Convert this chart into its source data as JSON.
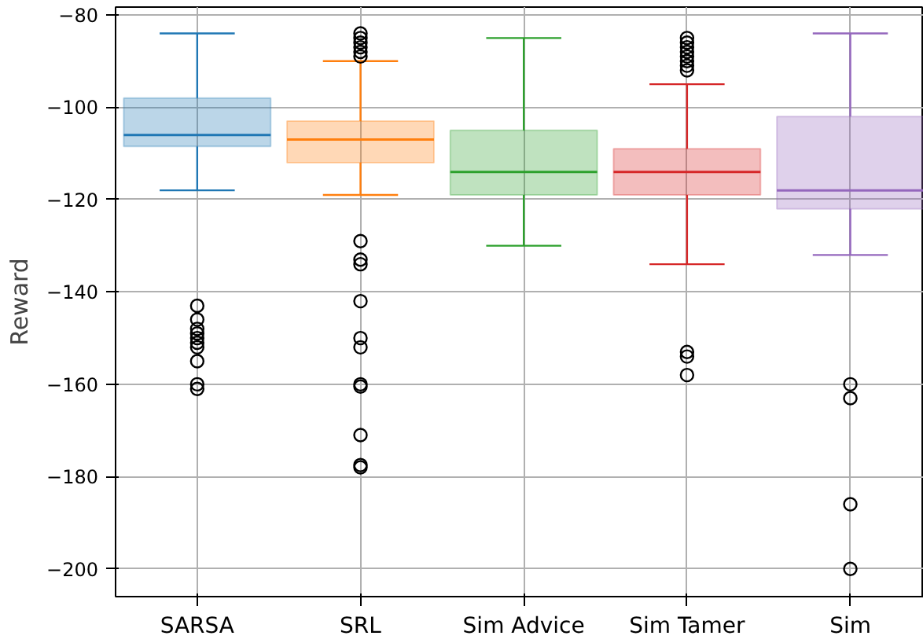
{
  "chart_data": {
    "type": "box",
    "ylabel": "Reward",
    "categories": [
      "SARSA",
      "SRL",
      "Sim Advice",
      "Sim Tamer",
      "Sim"
    ],
    "colors": [
      "#1f77b4",
      "#ff7f0e",
      "#2ca02c",
      "#d62728",
      "#9467bd"
    ],
    "boxes": [
      {
        "low": -118,
        "q1": -108.5,
        "median": -106,
        "q3": -98,
        "high": -84,
        "outliers": [
          -143,
          -146,
          -148,
          -149,
          -150,
          -151,
          -152,
          -155,
          -160,
          -161
        ]
      },
      {
        "low": -119,
        "q1": -112,
        "median": -107,
        "q3": -103,
        "high": -90,
        "outliers": [
          -84,
          -85,
          -86,
          -87,
          -88,
          -89,
          -129,
          -133,
          -134,
          -142,
          -150,
          -152,
          -160,
          -160.5,
          -171,
          -177.5,
          -178
        ]
      },
      {
        "low": -130,
        "q1": -119,
        "median": -114,
        "q3": -105,
        "high": -85
      },
      {
        "low": -134,
        "q1": -119,
        "median": -114,
        "q3": -109,
        "high": -95,
        "outliers": [
          -85,
          -86,
          -87,
          -88,
          -89,
          -90,
          -91,
          -92,
          -153,
          -154,
          -158
        ]
      },
      {
        "low": -132,
        "q1": -122,
        "median": -118,
        "q3": -102,
        "high": -84,
        "outliers": [
          -160,
          -163,
          -186,
          -200
        ]
      }
    ],
    "ylim": [
      -206,
      -78.3
    ],
    "yticks": [
      {
        "value": -200,
        "label": "−200"
      },
      {
        "value": -180,
        "label": "−180"
      },
      {
        "value": -160,
        "label": "−160"
      },
      {
        "value": -140,
        "label": "−140"
      },
      {
        "value": -120,
        "label": "−120"
      },
      {
        "value": -100,
        "label": "−100"
      },
      {
        "value": -80,
        "label": "−80"
      }
    ],
    "grid": true
  }
}
